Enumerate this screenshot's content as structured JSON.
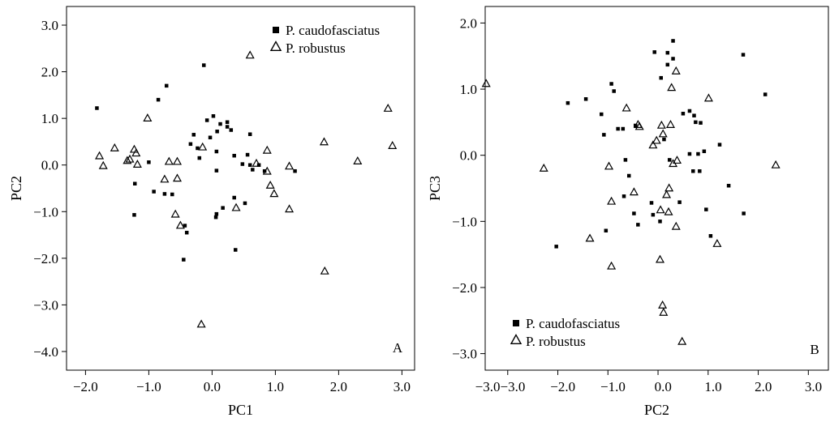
{
  "chart_data": [
    {
      "type": "scatter",
      "panel_label": "A",
      "xlabel": "PC1",
      "ylabel": "PC2",
      "xlim": [
        -2.3,
        3.2
      ],
      "ylim": [
        -4.4,
        3.4
      ],
      "xticks": [
        -2.0,
        -1.0,
        0.0,
        1.0,
        2.0,
        3.0
      ],
      "xtick_labels": [
        "−2.0",
        "−1.0",
        "0.0",
        "1.0",
        "2.0",
        "3.0"
      ],
      "yticks": [
        -4.0,
        -3.0,
        -2.0,
        -1.0,
        0.0,
        1.0,
        2.0,
        3.0
      ],
      "ytick_labels": [
        "−4.0",
        "−3.0",
        "−2.0",
        "−1.0",
        "0.0",
        "1.0",
        "2.0",
        "3.0"
      ],
      "legend": {
        "placement": "top-right"
      },
      "series": [
        {
          "name": "P. caudofasciatus",
          "marker": "square",
          "points": [
            [
              -1.82,
              1.22
            ],
            [
              -0.13,
              2.14
            ],
            [
              -0.72,
              1.7
            ],
            [
              -0.85,
              1.4
            ],
            [
              0.02,
              1.05
            ],
            [
              0.13,
              0.88
            ],
            [
              0.24,
              0.92
            ],
            [
              0.24,
              0.82
            ],
            [
              0.3,
              0.75
            ],
            [
              0.08,
              0.72
            ],
            [
              -0.08,
              0.96
            ],
            [
              -0.03,
              0.59
            ],
            [
              -0.29,
              0.65
            ],
            [
              -0.34,
              0.45
            ],
            [
              0.6,
              0.66
            ],
            [
              -0.23,
              0.36
            ],
            [
              0.07,
              0.29
            ],
            [
              -0.2,
              0.15
            ],
            [
              0.35,
              0.2
            ],
            [
              0.56,
              0.22
            ],
            [
              0.48,
              0.02
            ],
            [
              0.6,
              0.0
            ],
            [
              0.74,
              0.0
            ],
            [
              0.64,
              -0.1
            ],
            [
              0.83,
              -0.13
            ],
            [
              1.31,
              -0.13
            ],
            [
              0.07,
              -0.12
            ],
            [
              -1.0,
              0.06
            ],
            [
              -1.22,
              -0.4
            ],
            [
              -0.92,
              -0.57
            ],
            [
              -0.75,
              -0.62
            ],
            [
              -0.63,
              -0.63
            ],
            [
              -1.23,
              -1.07
            ],
            [
              0.17,
              -0.92
            ],
            [
              0.35,
              -0.7
            ],
            [
              0.52,
              -0.82
            ],
            [
              0.07,
              -1.05
            ],
            [
              0.06,
              -1.12
            ],
            [
              -0.43,
              -1.3
            ],
            [
              -0.4,
              -1.45
            ],
            [
              -0.45,
              -2.03
            ],
            [
              0.37,
              -1.82
            ]
          ]
        },
        {
          "name": "P. robustus",
          "marker": "triangle",
          "points": [
            [
              0.6,
              2.35
            ],
            [
              -1.02,
              1.0
            ],
            [
              2.78,
              1.21
            ],
            [
              1.77,
              0.49
            ],
            [
              2.85,
              0.41
            ],
            [
              2.3,
              0.08
            ],
            [
              -1.78,
              0.19
            ],
            [
              -1.72,
              -0.02
            ],
            [
              -1.54,
              0.36
            ],
            [
              -1.34,
              0.09
            ],
            [
              -1.3,
              0.12
            ],
            [
              -1.23,
              0.33
            ],
            [
              -1.2,
              0.25
            ],
            [
              -1.18,
              0.01
            ],
            [
              -0.68,
              0.07
            ],
            [
              -0.55,
              0.07
            ],
            [
              -0.75,
              -0.31
            ],
            [
              -0.55,
              -0.29
            ],
            [
              -0.15,
              0.38
            ],
            [
              0.87,
              0.31
            ],
            [
              0.7,
              0.03
            ],
            [
              0.87,
              -0.14
            ],
            [
              1.22,
              -0.03
            ],
            [
              0.92,
              -0.44
            ],
            [
              0.98,
              -0.62
            ],
            [
              1.22,
              -0.95
            ],
            [
              0.38,
              -0.92
            ],
            [
              -0.58,
              -1.06
            ],
            [
              -0.5,
              -1.3
            ],
            [
              1.78,
              -2.28
            ],
            [
              -0.17,
              -3.42
            ]
          ]
        }
      ]
    },
    {
      "type": "scatter",
      "panel_label": "B",
      "xlabel": "PC2",
      "ylabel": "PC3",
      "xlim": [
        -3.45,
        3.4
      ],
      "ylim": [
        -3.25,
        2.25
      ],
      "xticks": [
        -3.0,
        -2.0,
        -1.0,
        0.0,
        1.0,
        2.0,
        3.0
      ],
      "xtick_labels": [
        "−3.0",
        "−3.0",
        "−2.0",
        "−1.0",
        "0.0",
        "1.0",
        "2.0",
        "3.0"
      ],
      "xtick_label_values": [
        -3.4,
        -2.9,
        -1.9,
        -0.9,
        0.1,
        1.1,
        2.1,
        3.1
      ],
      "yticks": [
        -3.0,
        -2.0,
        -1.0,
        0.0,
        1.0,
        2.0
      ],
      "ytick_labels": [
        "−3.0",
        "−2.0",
        "−1.0",
        "0.0",
        "1.0",
        "2.0"
      ],
      "legend": {
        "placement": "bottom-left"
      },
      "series": [
        {
          "name": "P. caudofasciatus",
          "marker": "square",
          "points": [
            [
              0.3,
              1.73
            ],
            [
              -0.07,
              1.56
            ],
            [
              0.19,
              1.55
            ],
            [
              0.19,
              1.37
            ],
            [
              0.3,
              1.46
            ],
            [
              0.06,
              1.17
            ],
            [
              1.7,
              1.52
            ],
            [
              -0.93,
              1.08
            ],
            [
              -0.88,
              0.97
            ],
            [
              2.14,
              0.92
            ],
            [
              -1.44,
              0.85
            ],
            [
              -1.8,
              0.79
            ],
            [
              -1.13,
              0.62
            ],
            [
              0.5,
              0.63
            ],
            [
              0.63,
              0.67
            ],
            [
              0.72,
              0.6
            ],
            [
              -0.8,
              0.4
            ],
            [
              -0.7,
              0.4
            ],
            [
              -0.45,
              0.45
            ],
            [
              0.75,
              0.5
            ],
            [
              0.85,
              0.49
            ],
            [
              -1.08,
              0.31
            ],
            [
              0.12,
              0.24
            ],
            [
              1.23,
              0.16
            ],
            [
              0.92,
              0.06
            ],
            [
              0.8,
              0.02
            ],
            [
              0.63,
              0.02
            ],
            [
              0.23,
              -0.07
            ],
            [
              -0.65,
              -0.07
            ],
            [
              0.7,
              -0.24
            ],
            [
              0.83,
              -0.24
            ],
            [
              -0.58,
              -0.31
            ],
            [
              1.41,
              -0.46
            ],
            [
              -0.68,
              -0.62
            ],
            [
              0.43,
              -0.71
            ],
            [
              -0.13,
              -0.72
            ],
            [
              -0.48,
              -0.88
            ],
            [
              0.96,
              -0.82
            ],
            [
              1.71,
              -0.88
            ],
            [
              -0.1,
              -0.9
            ],
            [
              0.04,
              -1.0
            ],
            [
              -0.4,
              -1.05
            ],
            [
              -1.04,
              -1.14
            ],
            [
              1.05,
              -1.22
            ],
            [
              -2.03,
              -1.38
            ]
          ]
        },
        {
          "name": "P. robustus",
          "marker": "triangle",
          "points": [
            [
              -3.43,
              1.08
            ],
            [
              0.36,
              1.27
            ],
            [
              0.27,
              1.02
            ],
            [
              1.01,
              0.86
            ],
            [
              -0.63,
              0.71
            ],
            [
              -0.4,
              0.46
            ],
            [
              -0.37,
              0.43
            ],
            [
              -0.03,
              0.22
            ],
            [
              -0.1,
              0.15
            ],
            [
              0.07,
              0.45
            ],
            [
              0.1,
              0.32
            ],
            [
              0.25,
              0.46
            ],
            [
              0.38,
              -0.08
            ],
            [
              0.3,
              -0.13
            ],
            [
              2.35,
              -0.15
            ],
            [
              -2.28,
              -0.2
            ],
            [
              -0.98,
              -0.17
            ],
            [
              0.22,
              -0.5
            ],
            [
              0.17,
              -0.6
            ],
            [
              -0.93,
              -0.7
            ],
            [
              -0.48,
              -0.56
            ],
            [
              0.05,
              -0.83
            ],
            [
              0.21,
              -0.86
            ],
            [
              0.36,
              -1.08
            ],
            [
              -1.36,
              -1.26
            ],
            [
              1.18,
              -1.34
            ],
            [
              -0.93,
              -1.68
            ],
            [
              0.04,
              -1.58
            ],
            [
              0.09,
              -2.27
            ],
            [
              0.11,
              -2.38
            ],
            [
              0.48,
              -2.82
            ]
          ]
        }
      ]
    }
  ]
}
